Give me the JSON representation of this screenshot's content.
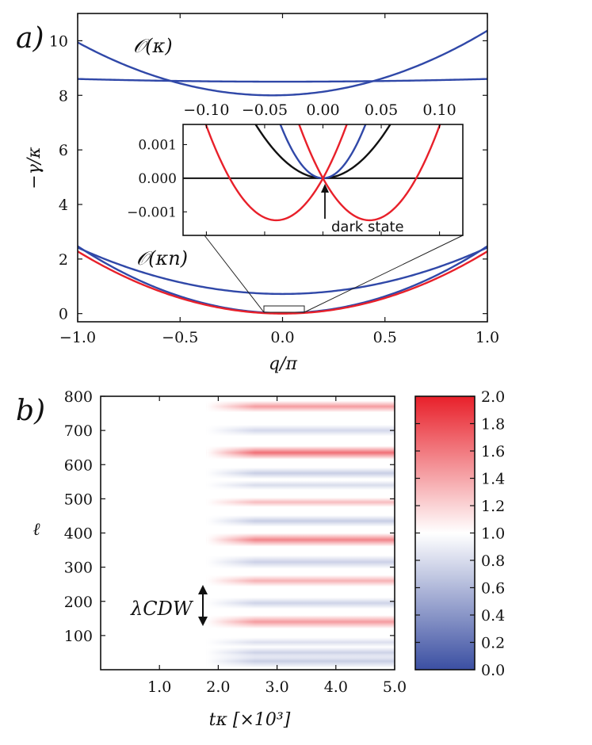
{
  "chart_data": [
    {
      "panel_label": "a)",
      "type": "line",
      "xlabel": "q/π",
      "ylabel": "−γ/κ",
      "xlim": [
        -1.0,
        1.0
      ],
      "ylim": [
        -0.3,
        11.0
      ],
      "x_ticks": [
        "−1.0",
        "−0.5",
        "0.0",
        "0.5",
        "1.0"
      ],
      "y_ticks": [
        "0",
        "2",
        "4",
        "6",
        "8",
        "10"
      ],
      "annotations": [
        "𝒪(κ)",
        "𝒪(κn)"
      ],
      "series": [
        {
          "name": "upper band 1",
          "color": "#3048a8",
          "shape": "parabola",
          "center": -0.05,
          "min": 8.0,
          "curvature": 2.15
        },
        {
          "name": "upper band 2",
          "color": "#3048a8",
          "shape": "parabola",
          "center": 0.0,
          "min": 8.5,
          "curvature": 0.1
        },
        {
          "name": "lower band blue 1",
          "color": "#3048a8",
          "shape": "parabola",
          "center": 0.0,
          "min": 0.72,
          "curvature": 1.7
        },
        {
          "name": "lower band blue 2",
          "color": "#3048a8",
          "shape": "parabola",
          "center": 0.0,
          "min": 0.02,
          "curvature": 2.45
        },
        {
          "name": "lower band red",
          "color": "#e8202a",
          "shape": "parabola",
          "center": 0.0,
          "min": 0.0,
          "curvature": 2.28
        }
      ],
      "inset": {
        "xlim": [
          -0.12,
          0.12
        ],
        "ylim": [
          -0.0017,
          0.0016
        ],
        "x_ticks": [
          "−0.10",
          "−0.05",
          "0.00",
          "0.05",
          "0.10"
        ],
        "y_ticks": [
          "0.001",
          "0.000",
          "−0.001"
        ],
        "annotation": "dark state",
        "series": [
          {
            "name": "black",
            "color": "#111111",
            "center": 0.0,
            "min": 0.0,
            "curvature": 0.48
          },
          {
            "name": "blue",
            "color": "#3048a8",
            "center": 0.0,
            "min": 0.0,
            "curvature": 1.2
          },
          {
            "name": "red left",
            "color": "#e8202a",
            "center": -0.04,
            "min": -0.00125,
            "curvature": 0.78
          },
          {
            "name": "red right",
            "color": "#e8202a",
            "center": 0.04,
            "min": -0.00125,
            "curvature": 0.78
          }
        ]
      }
    },
    {
      "panel_label": "b)",
      "type": "heatmap",
      "xlabel": "tκ  [×10³]",
      "ylabel": "ℓ",
      "xlim": [
        0,
        5.0
      ],
      "ylim": [
        0,
        800
      ],
      "x_ticks": [
        "1.0",
        "2.0",
        "3.0",
        "4.0",
        "5.0"
      ],
      "y_ticks": [
        "100",
        "200",
        "300",
        "400",
        "500",
        "600",
        "700",
        "800"
      ],
      "annotation": "λCDW",
      "colorbar": {
        "min": 0.0,
        "max": 2.0,
        "low_color": "#3b4fa2",
        "mid_color": "#ffffff",
        "high_color": "#e8202a",
        "ticks": [
          "0.0",
          "0.2",
          "0.4",
          "0.6",
          "0.8",
          "1.0",
          "1.2",
          "1.4",
          "1.6",
          "1.8",
          "2.0"
        ]
      },
      "stripe_onset": 1.8,
      "stripe_full": 2.6,
      "stripes": [
        {
          "l": 25,
          "value": 0.72,
          "width": 14
        },
        {
          "l": 50,
          "value": 0.74,
          "width": 12
        },
        {
          "l": 80,
          "value": 0.82,
          "width": 10
        },
        {
          "l": 140,
          "value": 1.45,
          "width": 14
        },
        {
          "l": 195,
          "value": 0.75,
          "width": 12
        },
        {
          "l": 260,
          "value": 1.35,
          "width": 12
        },
        {
          "l": 315,
          "value": 0.74,
          "width": 14
        },
        {
          "l": 380,
          "value": 1.55,
          "width": 14
        },
        {
          "l": 435,
          "value": 0.72,
          "width": 12
        },
        {
          "l": 490,
          "value": 1.3,
          "width": 10
        },
        {
          "l": 540,
          "value": 0.8,
          "width": 10
        },
        {
          "l": 575,
          "value": 0.72,
          "width": 12
        },
        {
          "l": 635,
          "value": 1.65,
          "width": 14
        },
        {
          "l": 700,
          "value": 0.78,
          "width": 12
        },
        {
          "l": 770,
          "value": 1.45,
          "width": 12
        }
      ]
    }
  ]
}
